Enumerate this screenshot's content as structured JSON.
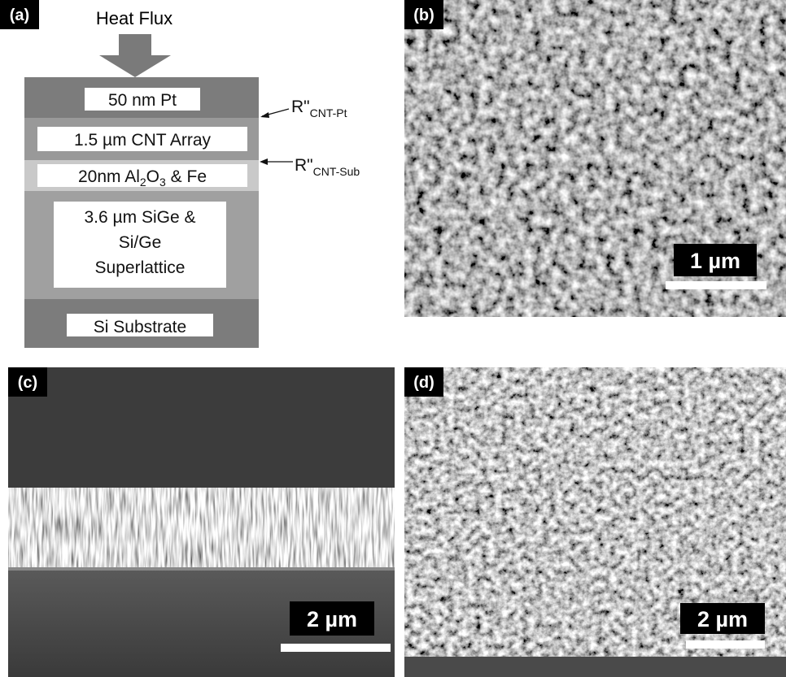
{
  "panel_a": {
    "label": "(a)",
    "heat_flux": "Heat Flux",
    "layers": [
      "50 nm Pt",
      "1.5 µm CNT Array",
      [
        "20nm Al",
        "2",
        "O",
        "3",
        " & Fe"
      ],
      [
        "3.6 µm SiGe &",
        "Si/Ge",
        "Superlattice"
      ],
      "Si Substrate"
    ],
    "resistances": [
      {
        "symbol": "R\"",
        "subscript": "CNT-Pt"
      },
      {
        "symbol": "R\"",
        "subscript": "CNT-Sub"
      }
    ]
  },
  "panel_b": {
    "label": "(b)",
    "scale_bar": "1 µm"
  },
  "panel_c": {
    "label": "(c)",
    "scale_bar": "2 µm"
  },
  "panel_d": {
    "label": "(d)",
    "scale_bar": "2 µm"
  }
}
